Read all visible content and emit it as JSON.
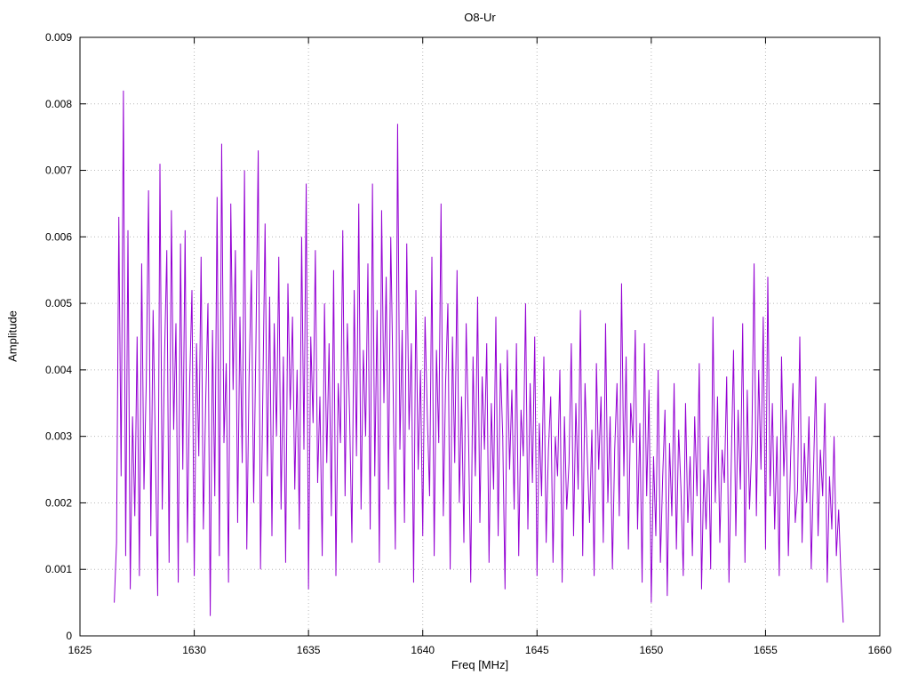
{
  "page": {
    "title": "O8-Ur"
  },
  "chart_data": {
    "type": "line",
    "title": "O8-Ur",
    "xlabel": "Freq [MHz]",
    "ylabel": "Amplitude",
    "xlim": [
      1625,
      1660
    ],
    "ylim": [
      0,
      0.009
    ],
    "xticks": [
      1625,
      1630,
      1635,
      1640,
      1645,
      1650,
      1655,
      1660
    ],
    "xtick_labels": [
      "1625",
      "1630",
      "1635",
      "1640",
      "1645",
      "1650",
      "1655",
      "1660"
    ],
    "yticks": [
      0,
      0.001,
      0.002,
      0.003,
      0.004,
      0.005,
      0.006,
      0.007,
      0.008,
      0.009
    ],
    "ytick_labels": [
      "0",
      "0.001",
      "0.002",
      "0.003",
      "0.004",
      "0.005",
      "0.006",
      "0.007",
      "0.008",
      "0.009"
    ],
    "grid": true,
    "legend": "none",
    "line_color": "#9400d3",
    "x_start": 1626.5,
    "x_step": 0.1,
    "y_scale": 0.0001,
    "values": [
      5,
      14,
      63,
      24,
      82,
      12,
      61,
      7,
      33,
      18,
      45,
      9,
      56,
      22,
      38,
      67,
      15,
      49,
      28,
      6,
      71,
      19,
      42,
      58,
      11,
      64,
      31,
      47,
      8,
      59,
      25,
      61,
      14,
      38,
      52,
      9,
      44,
      27,
      57,
      16,
      35,
      50,
      3,
      46,
      21,
      66,
      12,
      74,
      29,
      41,
      8,
      65,
      37,
      58,
      17,
      48,
      26,
      70,
      13,
      39,
      55,
      20,
      44,
      73,
      10,
      36,
      62,
      24,
      51,
      15,
      47,
      30,
      57,
      19,
      42,
      11,
      53,
      34,
      48,
      22,
      40,
      16,
      60,
      28,
      68,
      7,
      45,
      32,
      58,
      23,
      36,
      12,
      50,
      26,
      44,
      18,
      55,
      9,
      38,
      29,
      61,
      21,
      47,
      33,
      14,
      52,
      27,
      65,
      19,
      43,
      30,
      56,
      16,
      68,
      24,
      49,
      11,
      64,
      35,
      54,
      22,
      60,
      38,
      13,
      77,
      28,
      46,
      17,
      59,
      31,
      44,
      8,
      52,
      25,
      40,
      15,
      48,
      33,
      21,
      57,
      12,
      43,
      29,
      65,
      18,
      38,
      50,
      10,
      45,
      26,
      55,
      20,
      36,
      14,
      47,
      31,
      8,
      42,
      24,
      51,
      17,
      39,
      28,
      44,
      11,
      35,
      22,
      48,
      15,
      41,
      30,
      7,
      43,
      25,
      37,
      19,
      44,
      12,
      34,
      27,
      50,
      16,
      38,
      23,
      45,
      9,
      32,
      21,
      42,
      14,
      28,
      36,
      11,
      30,
      24,
      40,
      8,
      33,
      19,
      26,
      44,
      15,
      35,
      22,
      49,
      12,
      38,
      27,
      17,
      31,
      9,
      41,
      25,
      36,
      14,
      47,
      20,
      33,
      10,
      28,
      38,
      18,
      53,
      24,
      42,
      13,
      35,
      29,
      46,
      16,
      32,
      8,
      44,
      21,
      37,
      5,
      27,
      15,
      40,
      11,
      24,
      34,
      6,
      29,
      18,
      38,
      13,
      31,
      22,
      9,
      35,
      17,
      27,
      12,
      33,
      21,
      41,
      7,
      25,
      16,
      30,
      10,
      48,
      20,
      36,
      14,
      28,
      23,
      39,
      8,
      26,
      43,
      15,
      34,
      22,
      47,
      11,
      37,
      19,
      29,
      56,
      18,
      40,
      25,
      48,
      13,
      54,
      21,
      35,
      16,
      30,
      9,
      42,
      24,
      34,
      12,
      27,
      38,
      17,
      22,
      45,
      14,
      29,
      20,
      33,
      10,
      25,
      39,
      15,
      28,
      21,
      35,
      8,
      24,
      16,
      30,
      12,
      19,
      9,
      2
    ]
  }
}
